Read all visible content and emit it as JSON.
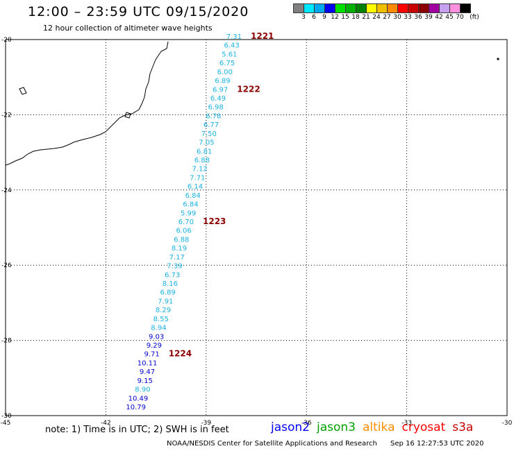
{
  "header": {
    "title": "12:00 – 23:59 UTC 09/15/2020",
    "subtitle": "12 hour collection of altimeter wave heights"
  },
  "legend": {
    "unit": "(ft)",
    "items": [
      {
        "label": "3",
        "color": "#808080"
      },
      {
        "label": "6",
        "color": "#00e8ff"
      },
      {
        "label": "9",
        "color": "#00a8f0"
      },
      {
        "label": "12",
        "color": "#0000f0"
      },
      {
        "label": "15",
        "color": "#00e000"
      },
      {
        "label": "18",
        "color": "#00b000"
      },
      {
        "label": "21",
        "color": "#008000"
      },
      {
        "label": "24",
        "color": "#ffff00"
      },
      {
        "label": "27",
        "color": "#f0c000"
      },
      {
        "label": "30",
        "color": "#ff8c00"
      },
      {
        "label": "33",
        "color": "#ff0000"
      },
      {
        "label": "36",
        "color": "#c80000"
      },
      {
        "label": "39",
        "color": "#8b0000"
      },
      {
        "label": "42",
        "color": "#a000a0"
      },
      {
        "label": "45",
        "color": "#c8a0f0"
      },
      {
        "label": "70",
        "color": "#ff90e0"
      },
      {
        "label": "",
        "color": "#000000"
      }
    ]
  },
  "axes": {
    "lon_ticks": [
      "-45",
      "-42",
      "-39",
      "-36",
      "-33",
      "-30"
    ],
    "lat_ticks": [
      "-20",
      "-22",
      "-24",
      "-26",
      "-28",
      "-30"
    ]
  },
  "track": {
    "color_light": "#1ab2e0",
    "color_dark": "#0000cd",
    "points": [
      {
        "lat": -20.0,
        "value": "7.31"
      },
      {
        "lat": -20.2,
        "value": "6.43"
      },
      {
        "lat": -20.4,
        "value": "5.61"
      },
      {
        "lat": -20.6,
        "value": "6.75"
      },
      {
        "lat": -20.8,
        "value": "6.00"
      },
      {
        "lat": -21.0,
        "value": "6.89"
      },
      {
        "lat": -21.2,
        "value": "6.97"
      },
      {
        "lat": -21.4,
        "value": "6.49"
      },
      {
        "lat": -21.6,
        "value": "6.98"
      },
      {
        "lat": -21.8,
        "value": "6.78"
      },
      {
        "lat": -22.0,
        "value": "6.77"
      },
      {
        "lat": -22.2,
        "value": "7.50"
      },
      {
        "lat": -22.4,
        "value": "7.05"
      },
      {
        "lat": -22.6,
        "value": "6.81"
      },
      {
        "lat": -22.8,
        "value": "6.88"
      },
      {
        "lat": -23.0,
        "value": "7.12"
      },
      {
        "lat": -23.2,
        "value": "7.71"
      },
      {
        "lat": -23.4,
        "value": "6.14"
      },
      {
        "lat": -23.6,
        "value": "6.84"
      },
      {
        "lat": -23.8,
        "value": "6.84"
      },
      {
        "lat": -24.0,
        "value": "5.99"
      },
      {
        "lat": -24.2,
        "value": "6.70"
      },
      {
        "lat": -24.4,
        "value": "6.06"
      },
      {
        "lat": -24.6,
        "value": "6.88"
      },
      {
        "lat": -24.8,
        "value": "8.19"
      },
      {
        "lat": -25.0,
        "value": "7.17"
      },
      {
        "lat": -25.2,
        "value": "7.39"
      },
      {
        "lat": -25.4,
        "value": "6.73"
      },
      {
        "lat": -25.6,
        "value": "8.16"
      },
      {
        "lat": -25.8,
        "value": "6.89"
      },
      {
        "lat": -26.0,
        "value": "7.91"
      },
      {
        "lat": -26.2,
        "value": "8.29"
      },
      {
        "lat": -26.4,
        "value": "8.55"
      },
      {
        "lat": -26.6,
        "value": "8.94"
      },
      {
        "lat": -26.8,
        "value": "9.03"
      },
      {
        "lat": -27.0,
        "value": "9.29"
      },
      {
        "lat": -27.2,
        "value": "9.71"
      },
      {
        "lat": -27.4,
        "value": "10.11"
      },
      {
        "lat": -27.6,
        "value": "9.47"
      },
      {
        "lat": -27.8,
        "value": "9.15"
      },
      {
        "lat": -28.0,
        "value": "8.90"
      },
      {
        "lat": -28.2,
        "value": "10.49"
      },
      {
        "lat": -28.4,
        "value": "10.79"
      }
    ]
  },
  "time_labels": [
    {
      "value_index": 0,
      "text": "1221"
    },
    {
      "value_index": 6,
      "text": "1222"
    },
    {
      "value_index": 21,
      "text": "1223"
    },
    {
      "value_index": 36,
      "text": "1224"
    }
  ],
  "time_label_color": "#8b0000",
  "note": "note: 1) Time is in UTC; 2) SWH is in feet",
  "satellites": [
    {
      "name": "jason2",
      "color": "#0000ff"
    },
    {
      "name": "jason3",
      "color": "#00a000"
    },
    {
      "name": "altika",
      "color": "#ff8c00"
    },
    {
      "name": "cryosat",
      "color": "#ff0000"
    },
    {
      "name": "s3a",
      "color": "#c80000"
    }
  ],
  "footer": {
    "credit": "NOAA/NESDIS Center for Satellite Applications and Research",
    "timestamp": "Sep 16 12:27:53 UTC 2020"
  }
}
